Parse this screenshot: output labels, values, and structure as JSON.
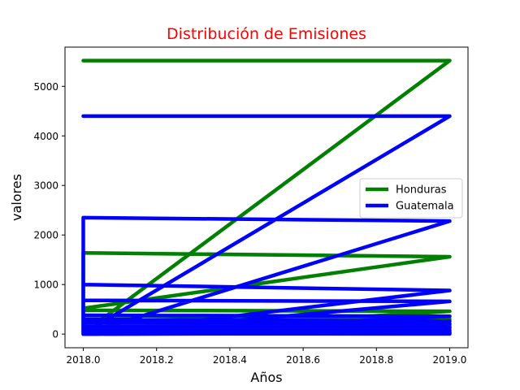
{
  "chart_data": {
    "type": "line",
    "title": "Distribución de Emisiones",
    "title_color": "#ff0000",
    "xlabel": "Años",
    "ylabel": "valores",
    "xlim": [
      2017.95,
      2019.05
    ],
    "ylim": [
      -276,
      5792
    ],
    "xticks": [
      2018.0,
      2018.2,
      2018.4,
      2018.6,
      2018.8,
      2019.0
    ],
    "xtick_labels": [
      "2018.0",
      "2018.2",
      "2018.4",
      "2018.6",
      "2018.8",
      "2019.0"
    ],
    "yticks": [
      0,
      1000,
      2000,
      3000,
      4000,
      5000
    ],
    "ytick_labels": [
      "0",
      "1000",
      "2000",
      "3000",
      "4000",
      "5000"
    ],
    "grid": false,
    "legend_position": "center-right",
    "series": [
      {
        "name": "Honduras",
        "color": "#008000",
        "points": [
          [
            2018,
            5520
          ],
          [
            2019,
            5520
          ],
          [
            2018,
            20
          ],
          [
            2018,
            1640
          ],
          [
            2019,
            1560
          ],
          [
            2018,
            520
          ],
          [
            2018,
            480
          ],
          [
            2019,
            460
          ],
          [
            2018,
            10
          ],
          [
            2018,
            380
          ],
          [
            2019,
            300
          ],
          [
            2018,
            5
          ],
          [
            2018,
            200
          ],
          [
            2019,
            180
          ],
          [
            2018,
            0
          ],
          [
            2018,
            140
          ],
          [
            2019,
            120
          ],
          [
            2018,
            0
          ],
          [
            2018,
            80
          ],
          [
            2019,
            60
          ],
          [
            2018,
            0
          ],
          [
            2018,
            40
          ],
          [
            2019,
            30
          ],
          [
            2018,
            0
          ],
          [
            2018,
            20
          ],
          [
            2019,
            10
          ]
        ]
      },
      {
        "name": "Guatemala",
        "color": "#0000ff",
        "points": [
          [
            2018,
            4400
          ],
          [
            2019,
            4400
          ],
          [
            2018,
            10
          ],
          [
            2018,
            2350
          ],
          [
            2019,
            2280
          ],
          [
            2018,
            0
          ],
          [
            2018,
            1000
          ],
          [
            2019,
            880
          ],
          [
            2018,
            0
          ],
          [
            2018,
            680
          ],
          [
            2019,
            660
          ],
          [
            2018,
            0
          ],
          [
            2018,
            380
          ],
          [
            2019,
            360
          ],
          [
            2018,
            0
          ],
          [
            2018,
            300
          ],
          [
            2019,
            260
          ],
          [
            2018,
            0
          ],
          [
            2018,
            230
          ],
          [
            2019,
            210
          ],
          [
            2018,
            0
          ],
          [
            2018,
            150
          ],
          [
            2019,
            140
          ],
          [
            2018,
            0
          ],
          [
            2018,
            100
          ],
          [
            2019,
            80
          ],
          [
            2018,
            0
          ],
          [
            2018,
            60
          ],
          [
            2019,
            40
          ],
          [
            2018,
            0
          ],
          [
            2018,
            30
          ],
          [
            2019,
            20
          ],
          [
            2018,
            0
          ],
          [
            2018,
            10
          ],
          [
            2019,
            5
          ]
        ]
      }
    ]
  }
}
